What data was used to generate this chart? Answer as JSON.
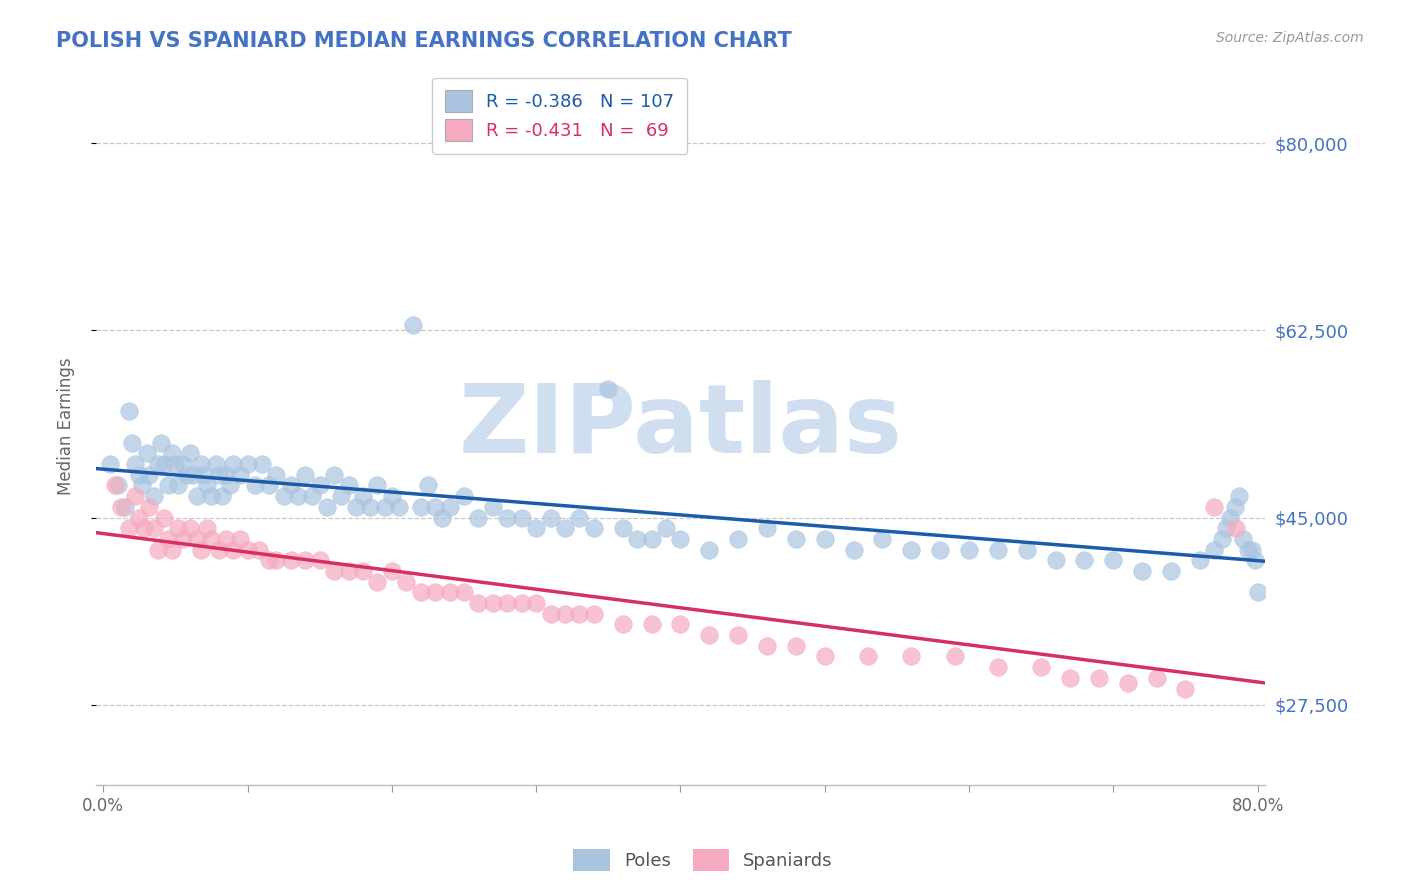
{
  "title": "POLISH VS SPANIARD MEDIAN EARNINGS CORRELATION CHART",
  "source": "Source: ZipAtlas.com",
  "ylabel": "Median Earnings",
  "xlim": [
    -0.005,
    0.805
  ],
  "ylim": [
    20000,
    87000
  ],
  "yticks": [
    27500,
    45000,
    62500,
    80000
  ],
  "ytick_labels": [
    "$27,500",
    "$45,000",
    "$62,500",
    "$80,000"
  ],
  "xticks": [
    0.0,
    0.1,
    0.2,
    0.3,
    0.4,
    0.5,
    0.6,
    0.7,
    0.8
  ],
  "xtick_labels": [
    "0.0%",
    "",
    "",
    "",
    "",
    "",
    "",
    "",
    "80.0%"
  ],
  "poles_R": -0.386,
  "poles_N": 107,
  "spaniards_R": -0.431,
  "spaniards_N": 69,
  "pole_color": "#aac4e0",
  "spaniard_color": "#f5aabf",
  "pole_line_color": "#1a5ca8",
  "spaniard_line_color": "#d63060",
  "background_color": "#ffffff",
  "grid_color": "#c8c8c8",
  "title_color": "#4472c4",
  "label_color": "#4472c4",
  "watermark_color": "#d0dff0",
  "poles_x": [
    0.005,
    0.01,
    0.015,
    0.018,
    0.02,
    0.022,
    0.025,
    0.027,
    0.03,
    0.032,
    0.035,
    0.038,
    0.04,
    0.042,
    0.045,
    0.048,
    0.05,
    0.052,
    0.055,
    0.058,
    0.06,
    0.062,
    0.065,
    0.068,
    0.07,
    0.072,
    0.075,
    0.078,
    0.08,
    0.082,
    0.085,
    0.088,
    0.09,
    0.095,
    0.1,
    0.105,
    0.11,
    0.115,
    0.12,
    0.125,
    0.13,
    0.135,
    0.14,
    0.145,
    0.15,
    0.155,
    0.16,
    0.165,
    0.17,
    0.175,
    0.18,
    0.185,
    0.19,
    0.195,
    0.2,
    0.205,
    0.215,
    0.22,
    0.225,
    0.23,
    0.235,
    0.24,
    0.25,
    0.26,
    0.27,
    0.28,
    0.29,
    0.3,
    0.31,
    0.32,
    0.33,
    0.34,
    0.35,
    0.36,
    0.37,
    0.38,
    0.39,
    0.4,
    0.42,
    0.44,
    0.46,
    0.48,
    0.5,
    0.52,
    0.54,
    0.56,
    0.58,
    0.6,
    0.62,
    0.64,
    0.66,
    0.68,
    0.7,
    0.72,
    0.74,
    0.76,
    0.77,
    0.775,
    0.778,
    0.781,
    0.784,
    0.787,
    0.79,
    0.793,
    0.796,
    0.798,
    0.8
  ],
  "poles_y": [
    50000,
    48000,
    46000,
    55000,
    52000,
    50000,
    49000,
    48000,
    51000,
    49000,
    47000,
    50000,
    52000,
    50000,
    48000,
    51000,
    50000,
    48000,
    50000,
    49000,
    51000,
    49000,
    47000,
    50000,
    49000,
    48000,
    47000,
    50000,
    49000,
    47000,
    49000,
    48000,
    50000,
    49000,
    50000,
    48000,
    50000,
    48000,
    49000,
    47000,
    48000,
    47000,
    49000,
    47000,
    48000,
    46000,
    49000,
    47000,
    48000,
    46000,
    47000,
    46000,
    48000,
    46000,
    47000,
    46000,
    63000,
    46000,
    48000,
    46000,
    45000,
    46000,
    47000,
    45000,
    46000,
    45000,
    45000,
    44000,
    45000,
    44000,
    45000,
    44000,
    57000,
    44000,
    43000,
    43000,
    44000,
    43000,
    42000,
    43000,
    44000,
    43000,
    43000,
    42000,
    43000,
    42000,
    42000,
    42000,
    42000,
    42000,
    41000,
    41000,
    41000,
    40000,
    40000,
    41000,
    42000,
    43000,
    44000,
    45000,
    46000,
    47000,
    43000,
    42000,
    42000,
    41000,
    38000
  ],
  "spaniards_x": [
    0.008,
    0.012,
    0.018,
    0.022,
    0.025,
    0.028,
    0.032,
    0.035,
    0.038,
    0.042,
    0.045,
    0.048,
    0.052,
    0.055,
    0.06,
    0.065,
    0.068,
    0.072,
    0.075,
    0.08,
    0.085,
    0.09,
    0.095,
    0.1,
    0.108,
    0.115,
    0.12,
    0.13,
    0.14,
    0.15,
    0.16,
    0.17,
    0.18,
    0.19,
    0.2,
    0.21,
    0.22,
    0.23,
    0.24,
    0.25,
    0.26,
    0.27,
    0.28,
    0.29,
    0.3,
    0.31,
    0.32,
    0.33,
    0.34,
    0.36,
    0.38,
    0.4,
    0.42,
    0.44,
    0.46,
    0.48,
    0.5,
    0.53,
    0.56,
    0.59,
    0.62,
    0.65,
    0.67,
    0.69,
    0.71,
    0.73,
    0.75,
    0.77,
    0.785
  ],
  "spaniards_y": [
    48000,
    46000,
    44000,
    47000,
    45000,
    44000,
    46000,
    44000,
    42000,
    45000,
    43000,
    42000,
    44000,
    43000,
    44000,
    43000,
    42000,
    44000,
    43000,
    42000,
    43000,
    42000,
    43000,
    42000,
    42000,
    41000,
    41000,
    41000,
    41000,
    41000,
    40000,
    40000,
    40000,
    39000,
    40000,
    39000,
    38000,
    38000,
    38000,
    38000,
    37000,
    37000,
    37000,
    37000,
    37000,
    36000,
    36000,
    36000,
    36000,
    35000,
    35000,
    35000,
    34000,
    34000,
    33000,
    33000,
    32000,
    32000,
    32000,
    32000,
    31000,
    31000,
    30000,
    30000,
    29500,
    30000,
    29000,
    46000,
    44000
  ]
}
